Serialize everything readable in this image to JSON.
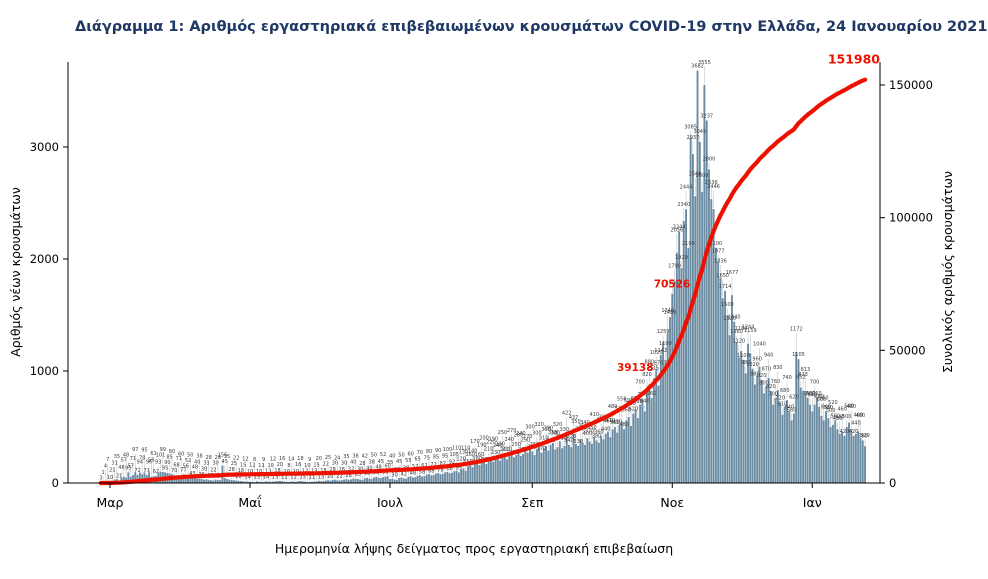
{
  "colors": {
    "bar": "#6b8ca2",
    "line": "#ee1100",
    "title": "#1f3864",
    "axis": "#000000",
    "bar_label": "#3a3a3a"
  },
  "chart_data": {
    "type": "bar+line",
    "title": "Διάγραμμα 1: Αριθμός εργαστηριακά επιβεβαιωμένων κρουσμάτων COVID-19 στην Ελλάδα, 24 Ιανουαρίου 2021",
    "xlabel": "Ημερομηνία λήψης δείγματος προς εργαστηριακή επιβεβαίωση",
    "ylabel_left": "Αριθμός νέων κρουσμάτων",
    "ylabel_right": "Συνολικός αριθμός κρουσμάτων",
    "x_ticks": [
      {
        "label": "Μαρ",
        "day_index": 4
      },
      {
        "label": "Μαΐ",
        "day_index": 65
      },
      {
        "label": "Ιουλ",
        "day_index": 126
      },
      {
        "label": "Σεπ",
        "day_index": 188
      },
      {
        "label": "Νοε",
        "day_index": 249
      },
      {
        "label": "Ιαν",
        "day_index": 310
      }
    ],
    "y_left_ticks": [
      "0",
      "1000",
      "2000",
      "3000"
    ],
    "y_right_ticks": [
      "0",
      "50000",
      "100000",
      "150000"
    ],
    "ylim_left": [
      0,
      3700
    ],
    "ylim_right": [
      0,
      155000
    ],
    "grid": false,
    "legend": "none",
    "series": [
      {
        "name": "Αριθμός νέων κρουσμάτων",
        "type": "bar",
        "axis": "left",
        "values": [
          3,
          1,
          4,
          7,
          10,
          21,
          31,
          35,
          21,
          46,
          57,
          48,
          95,
          57,
          71,
          97,
          72,
          94,
          78,
          95,
          71,
          96,
          56,
          61,
          62,
          93,
          101,
          99,
          95,
          90,
          85,
          80,
          70,
          68,
          71,
          60,
          77,
          56,
          52,
          50,
          45,
          48,
          40,
          38,
          35,
          30,
          33,
          28,
          25,
          22,
          30,
          28,
          26,
          156,
          45,
          35,
          30,
          28,
          25,
          22,
          20,
          18,
          15,
          12,
          14,
          10,
          12,
          8,
          15,
          10,
          11,
          9,
          14,
          13,
          10,
          12,
          15,
          18,
          20,
          16,
          12,
          10,
          8,
          14,
          12,
          10,
          16,
          18,
          15,
          12,
          10,
          9,
          11,
          13,
          15,
          20,
          15,
          18,
          22,
          25,
          20,
          28,
          30,
          24,
          22,
          26,
          30,
          35,
          28,
          32,
          40,
          38,
          35,
          30,
          28,
          42,
          45,
          40,
          38,
          50,
          55,
          48,
          45,
          52,
          58,
          60,
          35,
          40,
          30,
          28,
          45,
          50,
          42,
          38,
          55,
          60,
          48,
          52,
          65,
          70,
          58,
          62,
          75,
          80,
          68,
          72,
          85,
          90,
          78,
          82,
          95,
          100,
          88,
          92,
          105,
          110,
          95,
          120,
          130,
          110,
          150,
          160,
          140,
          170,
          180,
          160,
          190,
          200,
          170,
          210,
          220,
          190,
          230,
          240,
          200,
          250,
          260,
          210,
          240,
          270,
          230,
          250,
          280,
          240,
          260,
          290,
          270,
          300,
          283,
          250,
          300,
          320,
          270,
          310,
          330,
          290,
          340,
          358,
          300,
          320,
          372,
          310,
          330,
          422,
          340,
          320,
          437,
          350,
          330,
          390,
          360,
          340,
          400,
          370,
          350,
          410,
          380,
          360,
          420,
          390,
          440,
          460,
          410,
          480,
          500,
          450,
          520,
          550,
          480,
          560,
          590,
          510,
          620,
          659,
          580,
          700,
          750,
          640,
          820,
          880,
          760,
          935,
          1020,
          870,
          1142,
          1259,
          1100,
          1340,
          1480,
          1690,
          1790,
          2056,
          2244,
          1920,
          2340,
          2444,
          2100,
          3085,
          2937,
          2560,
          3682,
          3045,
          2600,
          3555,
          3237,
          2800,
          2536,
          2446,
          2100,
          1977,
          1836,
          1650,
          1714,
          1500,
          1320,
          1677,
          1440,
          1260,
          1120,
          1180,
          1100,
          980,
          1244,
          1159,
          1020,
          880,
          960,
          1040,
          920,
          800,
          870,
          940,
          820,
          700,
          760,
          830,
          720,
          610,
          680,
          740,
          640,
          560,
          620,
          1172,
          1105,
          852,
          823,
          813,
          760,
          700,
          640,
          700,
          760,
          680,
          600,
          560,
          640,
          580,
          500,
          520,
          560,
          480,
          440,
          460,
          420,
          500,
          540,
          480,
          420,
          440,
          460,
          400,
          380,
          329
        ]
      },
      {
        "name": "Συνολικός αριθμός κρουσμάτων",
        "type": "line",
        "axis": "right",
        "derivation": "cumulative sum of daily values, rescaled to final_value",
        "final_value": 151980
      }
    ],
    "annotations": [
      {
        "text": "151980",
        "attach": "end",
        "color": "#ee1100"
      },
      {
        "text": "70526",
        "day_index": 259,
        "color": "#ee1100"
      },
      {
        "text": "39138",
        "day_index": 243,
        "color": "#ee1100"
      }
    ]
  }
}
